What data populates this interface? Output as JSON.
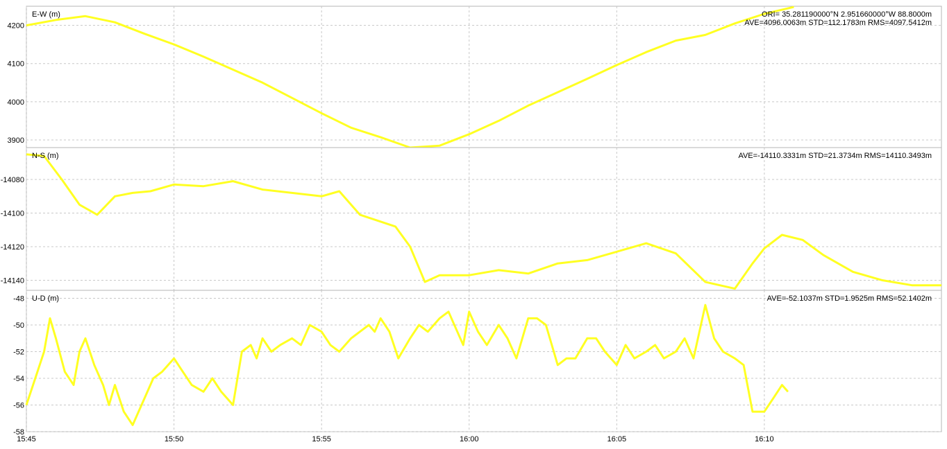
{
  "chart_data": [
    {
      "type": "line",
      "panel": "E-W",
      "ylabel": "E-W (m)",
      "ylim": [
        3880,
        4250
      ],
      "yticks": [
        4200,
        4100,
        4000,
        3900
      ],
      "annotations": [
        "ORI= 35.281190000°N    2.951660000°W 88.8000m",
        "AVE=4096.0063m STD=112.1783m RMS=4097.5412m"
      ],
      "grid": true,
      "series_color": "#ffff22",
      "x": [
        0,
        1,
        2,
        3,
        4,
        5,
        6,
        7,
        8,
        9,
        10,
        11,
        12,
        13,
        14,
        15,
        16,
        17,
        18,
        19,
        20,
        21,
        22,
        23,
        24,
        25,
        26
      ],
      "y": [
        4200,
        4214,
        4224,
        4208,
        4178,
        4150,
        4118,
        4084,
        4050,
        4010,
        3970,
        3932,
        3907,
        3880,
        3885,
        3915,
        3950,
        3990,
        4025,
        4060,
        4096,
        4130,
        4160,
        4175,
        4205,
        4230,
        4248
      ]
    },
    {
      "type": "line",
      "panel": "N-S",
      "ylabel": "N-S (m)",
      "ylim": [
        -14146,
        -14061
      ],
      "yticks": [
        -14080,
        -14100,
        -14120,
        -14140
      ],
      "annotations": [
        "AVE=-14110.3331m STD=21.3734m RMS=14110.3493m"
      ],
      "grid": true,
      "series_color": "#ffff22",
      "x": [
        0,
        0.6,
        1.2,
        1.8,
        2.4,
        3,
        3.6,
        4.2,
        5,
        6,
        7,
        8,
        9,
        10,
        10.6,
        11.3,
        12.5,
        13,
        13.5,
        14,
        15,
        16,
        17,
        18,
        19,
        20,
        21,
        22,
        23,
        24,
        24.6,
        25,
        25.6,
        26.3,
        27,
        28,
        29,
        30,
        31
      ],
      "y": [
        -14065,
        -14066,
        -14080,
        -14095,
        -14101,
        -14090,
        -14088,
        -14087,
        -14083,
        -14084,
        -14081,
        -14086,
        -14088,
        -14090,
        -14087,
        -14101,
        -14108,
        -14120,
        -14141,
        -14137,
        -14137,
        -14134,
        -14136,
        -14130,
        -14128,
        -14123,
        -14118,
        -14124,
        -14141,
        -14145,
        -14130,
        -14121,
        -14113,
        -14116,
        -14125,
        -14135,
        -14140,
        -14143,
        -14143
      ]
    },
    {
      "type": "line",
      "panel": "U-D",
      "ylabel": "U-D (m)",
      "ylim": [
        -58,
        -47.4
      ],
      "yticks": [
        -48,
        -50,
        -52,
        -54,
        -56,
        -58
      ],
      "annotations": [
        "AVE=-52.1037m STD=1.9525m RMS=52.1402m"
      ],
      "grid": true,
      "series_color": "#ffff22",
      "x": [
        0,
        0.3,
        0.6,
        0.8,
        1,
        1.3,
        1.6,
        1.8,
        2,
        2.3,
        2.6,
        2.8,
        3,
        3.3,
        3.6,
        4,
        4.3,
        4.6,
        5,
        5.3,
        5.6,
        6,
        6.3,
        6.6,
        7,
        7.3,
        7.6,
        7.8,
        8,
        8.3,
        8.6,
        9,
        9.3,
        9.6,
        10,
        10.3,
        10.6,
        11,
        11.3,
        11.6,
        11.8,
        12,
        12.3,
        12.6,
        13,
        13.3,
        13.6,
        14,
        14.3,
        14.6,
        14.8,
        15,
        15.3,
        15.6,
        16,
        16.3,
        16.6,
        17,
        17.3,
        17.6,
        18,
        18.3,
        18.6,
        19,
        19.3,
        19.6,
        20,
        20.3,
        20.6,
        21,
        21.3,
        21.6,
        22,
        22.3,
        22.6,
        23,
        23.3,
        23.6,
        24,
        24.3,
        24.6,
        25,
        25.3,
        25.6,
        25.8
      ],
      "y": [
        -56,
        -54,
        -52,
        -49.5,
        -51,
        -53.5,
        -54.5,
        -52,
        -51,
        -53,
        -54.5,
        -56,
        -54.5,
        -56.5,
        -57.5,
        -55.5,
        -54,
        -53.5,
        -52.5,
        -53.5,
        -54.5,
        -55,
        -54,
        -55,
        -56,
        -52,
        -51.5,
        -52.5,
        -51,
        -52,
        -51.5,
        -51,
        -51.5,
        -50,
        -50.5,
        -51.5,
        -52,
        -51,
        -50.5,
        -50,
        -50.5,
        -49.5,
        -50.5,
        -52.5,
        -51,
        -50,
        -50.5,
        -49.5,
        -49,
        -50.5,
        -51.5,
        -49,
        -50.5,
        -51.5,
        -50,
        -51,
        -52.5,
        -49.5,
        -49.5,
        -50,
        -53,
        -52.5,
        -52.5,
        -51,
        -51,
        -52,
        -53,
        -51.5,
        -52.5,
        -52,
        -51.5,
        -52.5,
        -52,
        -51,
        -52.5,
        -48.5,
        -51,
        -52,
        -52.5,
        -53,
        -56.5,
        -56.5,
        -55.5,
        -54.5,
        -55
      ]
    }
  ],
  "x_axis": {
    "tick_values": [
      0,
      5,
      10,
      15,
      20,
      25
    ],
    "tick_labels": [
      "15:45",
      "15:50",
      "15:55",
      "16:00",
      "16:05",
      "16:10"
    ],
    "xlim": [
      0,
      31
    ]
  }
}
